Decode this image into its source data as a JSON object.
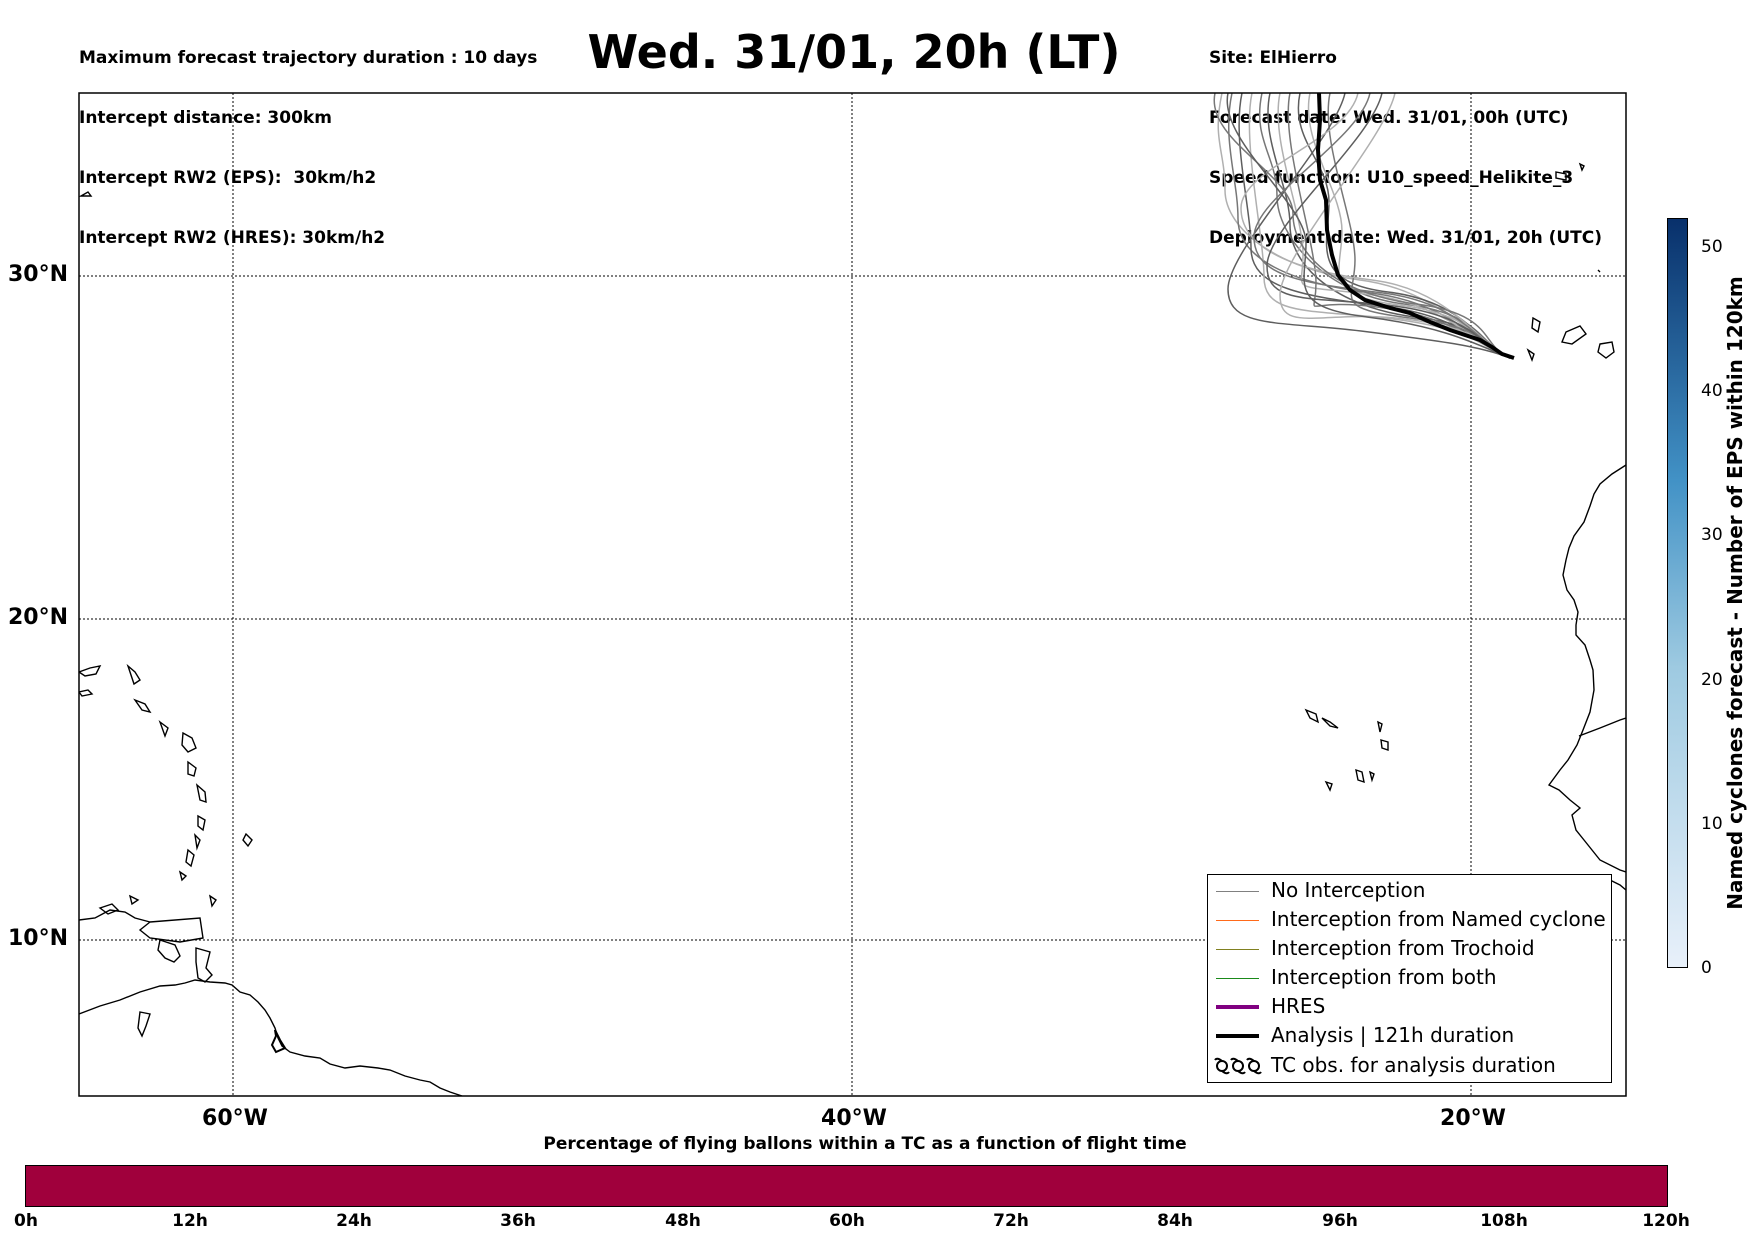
{
  "header": {
    "left": [
      "Maximum forecast trajectory duration : 10 days",
      "Intercept distance: 300km",
      "Intercept RW2 (EPS):  30km/h2",
      "Intercept RW2 (HRES): 30km/h2"
    ],
    "title": "Wed. 31/01, 20h (LT)",
    "right": [
      "Site: ElHierro",
      "Forecast date: Wed. 31/01, 00h (UTC)",
      "Speed function: U10_speed_Helikite_3",
      "Deployment date: Wed. 31/01, 20h (UTC)"
    ]
  },
  "map": {
    "lat_labels": [
      "30°N",
      "20°N",
      "10°N"
    ],
    "lon_labels": [
      "60°W",
      "40°W",
      "20°W"
    ],
    "gridlines": true
  },
  "legend": {
    "items": [
      {
        "label": "No Interception",
        "color": "#808080",
        "style": "thin"
      },
      {
        "label": "Interception from Named cyclone",
        "color": "#ff6a1a",
        "style": "thin"
      },
      {
        "label": "Interception from Trochoid",
        "color": "#808020",
        "style": "thin"
      },
      {
        "label": "Interception from both",
        "color": "#1a8a1a",
        "style": "thin"
      },
      {
        "label": "HRES",
        "color": "#800080",
        "style": "thick"
      },
      {
        "label": "Analysis | 121h duration",
        "color": "#000000",
        "style": "thick"
      },
      {
        "label": "TC obs. for analysis duration",
        "icon": "tc-symbol-icon"
      }
    ]
  },
  "colorbar_right": {
    "title": "Named cyclones forecast - Number of EPS within 120km",
    "ticks": [
      "0",
      "10",
      "20",
      "30",
      "40",
      "50"
    ],
    "max": 52,
    "color_low": "#e8f0fa",
    "color_high": "#08306b"
  },
  "colorbar_bottom": {
    "title": "Percentage of flying ballons within a TC as a function of flight time",
    "ticks": [
      "0h",
      "12h",
      "24h",
      "36h",
      "48h",
      "60h",
      "72h",
      "84h",
      "96h",
      "108h",
      "120h"
    ],
    "fill_color": "#a0003c",
    "percent_values": [
      0,
      0,
      0,
      0,
      0,
      0,
      0,
      0,
      0,
      0,
      0
    ]
  },
  "colors": {
    "trajectory": "#666666",
    "analysis": "#000000",
    "coast": "#000000"
  }
}
